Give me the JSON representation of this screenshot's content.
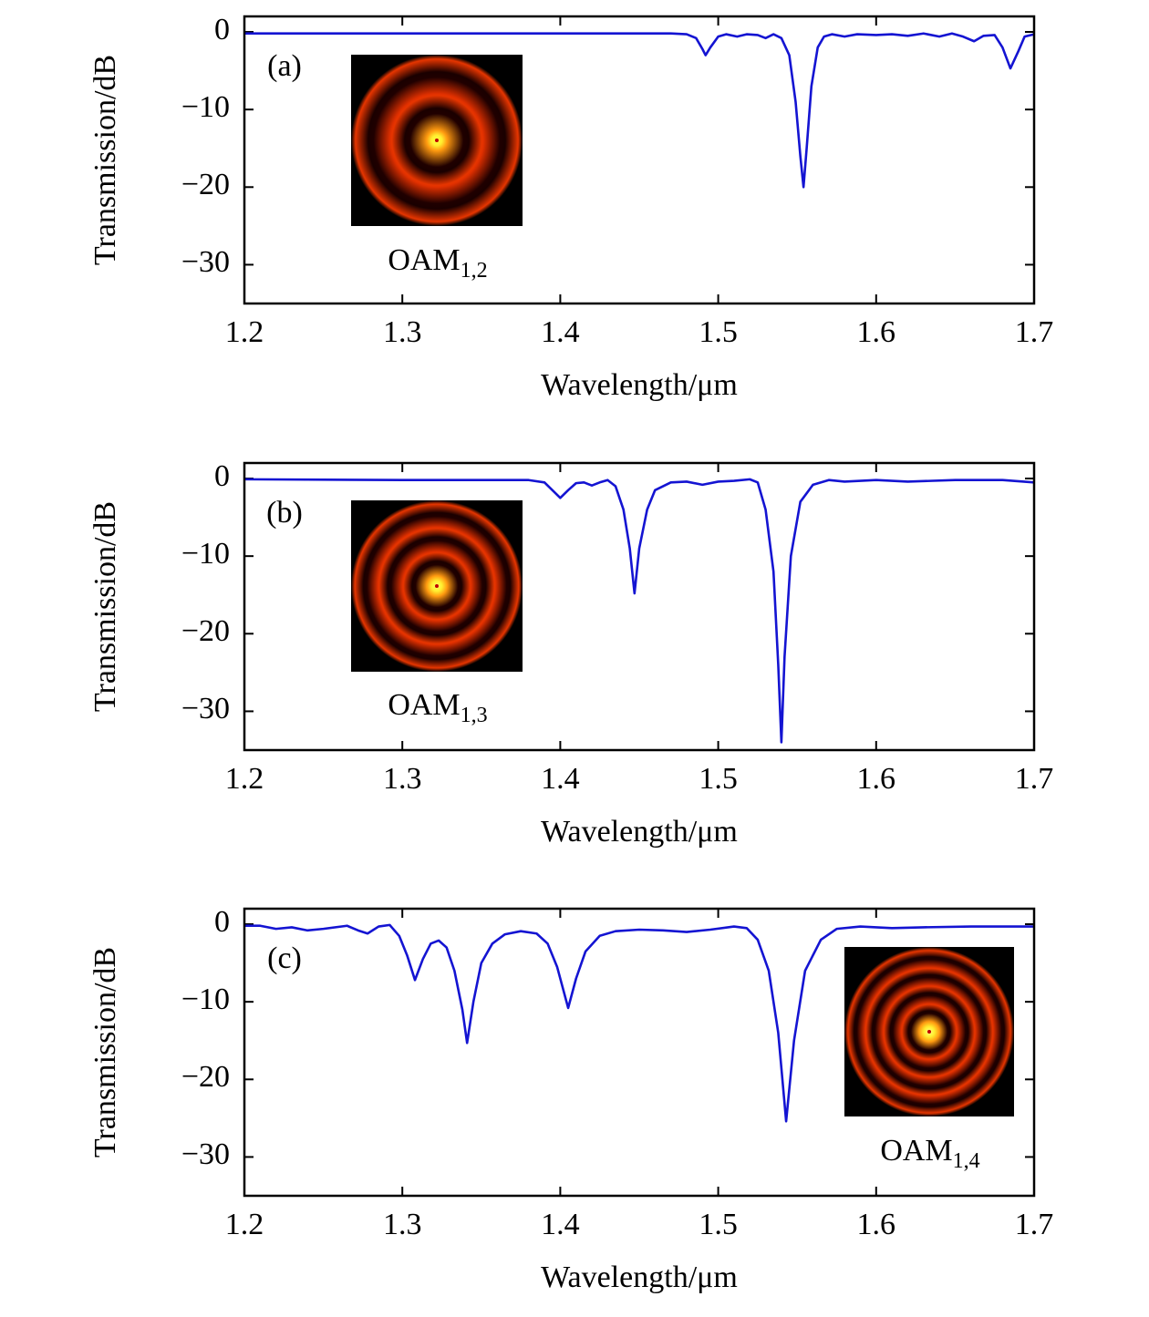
{
  "chart_data": [
    {
      "type": "line",
      "panel_label": "(a)",
      "inset_label": "OAM",
      "inset_label_subscript": "1,2",
      "x_label": "Wavelength/μm",
      "y_label": "Transmission/dB",
      "xlim": [
        1.2,
        1.7
      ],
      "ylim": [
        -35,
        2
      ],
      "xticks": [
        1.2,
        1.3,
        1.4,
        1.5,
        1.6,
        1.7
      ],
      "yticks": [
        {
          "value": -30,
          "label": "−30"
        },
        {
          "value": -20,
          "label": "−20"
        },
        {
          "value": -10,
          "label": "−10"
        },
        0
      ],
      "color": "#1414d2",
      "x": [
        1.2,
        1.3,
        1.4,
        1.47,
        1.48,
        1.486,
        1.49,
        1.492,
        1.495,
        1.5,
        1.505,
        1.512,
        1.518,
        1.525,
        1.53,
        1.535,
        1.54,
        1.545,
        1.549,
        1.552,
        1.554,
        1.556,
        1.559,
        1.563,
        1.567,
        1.572,
        1.58,
        1.588,
        1.6,
        1.61,
        1.62,
        1.63,
        1.64,
        1.648,
        1.655,
        1.662,
        1.668,
        1.675,
        1.68,
        1.685,
        1.69,
        1.694,
        1.7
      ],
      "values": [
        -0.2,
        -0.2,
        -0.2,
        -0.2,
        -0.3,
        -0.8,
        -2.2,
        -3.0,
        -2.0,
        -0.6,
        -0.3,
        -0.6,
        -0.3,
        -0.4,
        -0.8,
        -0.3,
        -0.8,
        -3,
        -9,
        -16,
        -20,
        -15,
        -7,
        -2,
        -0.6,
        -0.3,
        -0.6,
        -0.3,
        -0.4,
        -0.3,
        -0.5,
        -0.2,
        -0.6,
        -0.2,
        -0.6,
        -1.2,
        -0.5,
        -0.4,
        -2,
        -4.7,
        -2.5,
        -0.6,
        -0.3
      ]
    },
    {
      "type": "line",
      "panel_label": "(b)",
      "inset_label": "OAM",
      "inset_label_subscript": "1,3",
      "x_label": "Wavelength/μm",
      "y_label": "Transmission/dB",
      "xlim": [
        1.2,
        1.7
      ],
      "ylim": [
        -35,
        2
      ],
      "xticks": [
        1.2,
        1.3,
        1.4,
        1.5,
        1.6,
        1.7
      ],
      "yticks": [
        {
          "value": -30,
          "label": "−30"
        },
        {
          "value": -20,
          "label": "−20"
        },
        {
          "value": -10,
          "label": "−10"
        },
        0
      ],
      "color": "#1414d2",
      "x": [
        1.2,
        1.3,
        1.38,
        1.39,
        1.395,
        1.4,
        1.405,
        1.41,
        1.415,
        1.42,
        1.425,
        1.43,
        1.435,
        1.44,
        1.444,
        1.447,
        1.45,
        1.455,
        1.46,
        1.47,
        1.48,
        1.49,
        1.5,
        1.51,
        1.52,
        1.525,
        1.53,
        1.535,
        1.538,
        1.54,
        1.542,
        1.546,
        1.552,
        1.56,
        1.57,
        1.58,
        1.6,
        1.62,
        1.65,
        1.68,
        1.7
      ],
      "values": [
        -0.1,
        -0.2,
        -0.2,
        -0.5,
        -1.5,
        -2.5,
        -1.5,
        -0.6,
        -0.5,
        -0.9,
        -0.5,
        -0.2,
        -1,
        -4,
        -9,
        -14.8,
        -9,
        -4,
        -1.5,
        -0.5,
        -0.4,
        -0.8,
        -0.4,
        -0.3,
        -0.1,
        -0.5,
        -4,
        -12,
        -24,
        -34,
        -23,
        -10,
        -3,
        -0.8,
        -0.2,
        -0.4,
        -0.2,
        -0.4,
        -0.2,
        -0.2,
        -0.5
      ]
    },
    {
      "type": "line",
      "panel_label": "(c)",
      "inset_label": "OAM",
      "inset_label_subscript": "1,4",
      "x_label": "Wavelength/μm",
      "y_label": "Transmission/dB",
      "xlim": [
        1.2,
        1.7
      ],
      "ylim": [
        -35,
        2
      ],
      "xticks": [
        1.2,
        1.3,
        1.4,
        1.5,
        1.6,
        1.7
      ],
      "yticks": [
        {
          "value": -30,
          "label": "−30"
        },
        {
          "value": -20,
          "label": "−20"
        },
        {
          "value": -10,
          "label": "−10"
        },
        0
      ],
      "color": "#1414d2",
      "x": [
        1.2,
        1.21,
        1.22,
        1.23,
        1.24,
        1.25,
        1.265,
        1.272,
        1.278,
        1.285,
        1.292,
        1.298,
        1.303,
        1.308,
        1.313,
        1.318,
        1.323,
        1.328,
        1.333,
        1.338,
        1.341,
        1.345,
        1.35,
        1.357,
        1.365,
        1.375,
        1.385,
        1.392,
        1.398,
        1.405,
        1.41,
        1.416,
        1.425,
        1.435,
        1.45,
        1.465,
        1.48,
        1.495,
        1.51,
        1.518,
        1.525,
        1.532,
        1.538,
        1.543,
        1.548,
        1.555,
        1.565,
        1.575,
        1.59,
        1.61,
        1.63,
        1.66,
        1.7
      ],
      "values": [
        -0.2,
        -0.2,
        -0.6,
        -0.4,
        -0.8,
        -0.6,
        -0.2,
        -0.8,
        -1.2,
        -0.3,
        -0.1,
        -1.5,
        -4,
        -7.2,
        -4.5,
        -2.5,
        -2.1,
        -3,
        -6,
        -11,
        -15.3,
        -10,
        -5,
        -2.5,
        -1.3,
        -0.9,
        -1.2,
        -2.5,
        -5.5,
        -10.8,
        -7,
        -3.5,
        -1.5,
        -0.9,
        -0.7,
        -0.8,
        -1,
        -0.7,
        -0.3,
        -0.5,
        -2,
        -6,
        -14,
        -25.4,
        -15,
        -6,
        -2,
        -0.6,
        -0.3,
        -0.5,
        -0.4,
        -0.3,
        -0.3
      ]
    }
  ]
}
